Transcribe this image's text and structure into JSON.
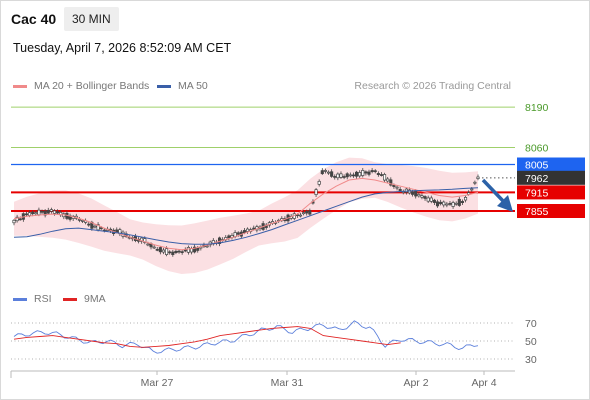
{
  "header": {
    "instrument": "Cac 40",
    "timeframe": "30 MIN",
    "datetime": "Tuesday, April 7, 2026 8:52:09 AM CET"
  },
  "legend": {
    "ma20_label": "MA 20 + Bollinger Bands",
    "ma50_label": "MA 50",
    "credit": "Research © 2026 Trading Central"
  },
  "rsi_legend": {
    "rsi_label": "RSI",
    "ma9_label": "9MA"
  },
  "colors": {
    "ma20": "#f08a8a",
    "bollinger_fill": "#fbe0e3",
    "ma50": "#3a5fa8",
    "candle": "#444444",
    "target_line": "#9fd06a",
    "target_label": "#4a9a2a",
    "pivot": "#1e64f0",
    "support": "#e60000",
    "current_price_bg": "#333333",
    "rsi": "#5b7fdb",
    "rsi_ma": "#e02424",
    "arrow": "#2c62a8"
  },
  "chart_data": {
    "type": "candlestick",
    "title": "Cac 40",
    "interval": "30 MIN",
    "x_tick_labels": [
      "Mar 27",
      "Mar 31",
      "Apr 2",
      "Apr 4"
    ],
    "y_tick_labels": [
      "8190",
      "8060"
    ],
    "price_levels": [
      {
        "label": "8190",
        "value": 8190,
        "role": "target 2"
      },
      {
        "label": "8060",
        "value": 8060,
        "role": "target 1"
      },
      {
        "label": "8005",
        "value": 8005,
        "role": "pivot"
      },
      {
        "label": "7962",
        "value": 7962,
        "role": "last price"
      },
      {
        "label": "7915",
        "value": 7915,
        "role": "support 1"
      },
      {
        "label": "7855",
        "value": 7855,
        "role": "support 2"
      }
    ],
    "close_series": [
      7820,
      7845,
      7850,
      7855,
      7840,
      7830,
      7810,
      7795,
      7790,
      7770,
      7760,
      7735,
      7720,
      7725,
      7730,
      7745,
      7760,
      7775,
      7790,
      7800,
      7815,
      7830,
      7840,
      7855,
      7990,
      7965,
      7970,
      7975,
      7985,
      7955,
      7920,
      7915,
      7895,
      7880,
      7875,
      7890,
      7962
    ],
    "ma20_series": [
      7830,
      7838,
      7842,
      7845,
      7842,
      7832,
      7818,
      7800,
      7785,
      7770,
      7758,
      7745,
      7735,
      7730,
      7735,
      7745,
      7758,
      7770,
      7785,
      7800,
      7815,
      7828,
      7845,
      7880,
      7910,
      7935,
      7955,
      7960,
      7955,
      7945,
      7935,
      7925,
      7915,
      7905,
      7900,
      7905,
      7915
    ],
    "ma50_series": [
      7770,
      7772,
      7780,
      7790,
      7798,
      7800,
      7795,
      7790,
      7785,
      7778,
      7770,
      7762,
      7755,
      7750,
      7748,
      7748,
      7752,
      7760,
      7770,
      7782,
      7795,
      7810,
      7825,
      7840,
      7855,
      7870,
      7885,
      7900,
      7910,
      7915,
      7918,
      7920,
      7922,
      7923,
      7925,
      7928,
      7930
    ],
    "rsi": {
      "axis_ticks": [
        70,
        50,
        30
      ],
      "rsi_series": [
        55,
        58,
        60,
        57,
        52,
        48,
        50,
        45,
        47,
        38,
        40,
        42,
        44,
        48,
        50,
        56,
        62,
        66,
        60,
        64,
        68,
        62,
        70,
        65,
        45,
        52,
        50,
        48,
        46,
        42,
        47
      ],
      "ma9_series": [
        52,
        54,
        55,
        56,
        54,
        52,
        50,
        48,
        47,
        44,
        43,
        44,
        45,
        47,
        49,
        52,
        56,
        58,
        60,
        62,
        64,
        65,
        66,
        64,
        56,
        54,
        52,
        50,
        48,
        46,
        48
      ]
    }
  }
}
